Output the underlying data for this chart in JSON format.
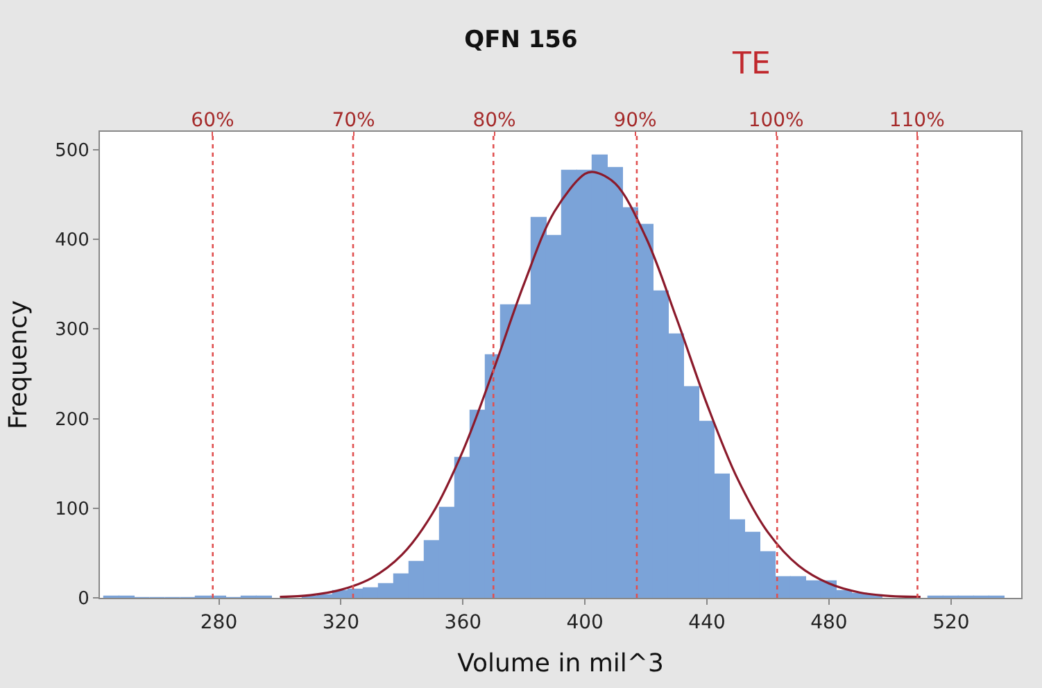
{
  "chart_data": {
    "type": "histogram",
    "title": "QFN 156",
    "xlabel": "Volume in mil^3",
    "ylabel": "Frequency",
    "bins": [
      242.5,
      247.5,
      252.5,
      257.5,
      262.5,
      267.5,
      272.5,
      277.5,
      282.5,
      287.5,
      292.5,
      297.5,
      302.5,
      307.5,
      312.5,
      317.5,
      322.5,
      327.5,
      332.5,
      337.5,
      342.5,
      347.5,
      352.5,
      357.5,
      362.5,
      367.5,
      372.5,
      377.5,
      382.5,
      387.5,
      392.5,
      397.5,
      402.5,
      407.5,
      412.5,
      417.5,
      422.5,
      427.5,
      432.5,
      437.5,
      442.5,
      447.5,
      452.5,
      457.5,
      462.5,
      467.5,
      472.5,
      477.5,
      482.5,
      487.5,
      492.5,
      497.5,
      502.5,
      507.5,
      512.5,
      517.5,
      522.5,
      527.5,
      532.5,
      537.5
    ],
    "values": [
      2,
      1,
      0,
      0,
      0,
      0,
      1,
      1,
      0,
      1,
      1,
      null,
      null,
      2,
      3,
      8,
      10,
      11,
      16,
      26,
      41,
      64,
      101,
      156,
      209,
      271,
      327,
      327,
      424,
      404,
      476,
      476,
      493,
      480,
      435,
      416,
      342,
      294,
      235,
      197,
      138,
      87,
      72,
      51,
      23,
      23,
      18,
      18,
      8,
      5,
      3,
      null,
      null,
      null,
      1,
      1,
      1,
      1,
      1
    ],
    "color": "#7ba3d8",
    "series": [
      {
        "type": "line",
        "color": "#8b1a2b",
        "x": [
          300,
          310,
          320,
          330,
          340,
          350,
          360,
          370,
          380,
          390,
          400,
          403,
          410,
          420,
          430,
          440,
          450,
          460,
          470,
          480,
          490,
          500,
          510
        ],
        "values": [
          1,
          3,
          9,
          22,
          48,
          94,
          164,
          254,
          350,
          431,
          473,
          475,
          462,
          402,
          312,
          216,
          133,
          73,
          36,
          16,
          6,
          2,
          1
        ]
      }
    ],
    "xlim": [
      241,
      543
    ],
    "ylim": [
      0,
      520
    ],
    "xticks": [
      280,
      320,
      360,
      400,
      440,
      480,
      520
    ],
    "yticks": [
      0,
      100,
      200,
      300,
      400,
      500
    ],
    "x2lim": [
      52.0,
      117.4
    ],
    "x2ticks": [
      {
        "value": 60,
        "label": "60%"
      },
      {
        "value": 70,
        "label": "70%"
      },
      {
        "value": 80,
        "label": "80%"
      },
      {
        "value": 90,
        "label": "90%"
      },
      {
        "value": 100,
        "label": "100%"
      },
      {
        "value": 110,
        "label": "110%"
      }
    ],
    "ref_lines": [
      {
        "axis": "x",
        "value": 278,
        "color": "#e05050",
        "line_style": "dotted"
      },
      {
        "axis": "x",
        "value": 324,
        "color": "#e05050",
        "line_style": "dotted"
      },
      {
        "axis": "x",
        "value": 370,
        "color": "#e05050",
        "line_style": "dotted"
      },
      {
        "axis": "x",
        "value": 417,
        "color": "#e05050",
        "line_style": "dotted"
      },
      {
        "axis": "x",
        "value": 463,
        "color": "#e05050",
        "line_style": "dotted"
      },
      {
        "axis": "x",
        "value": 509,
        "color": "#e05050",
        "line_style": "dotted"
      }
    ],
    "annotations": [
      "TE"
    ]
  }
}
